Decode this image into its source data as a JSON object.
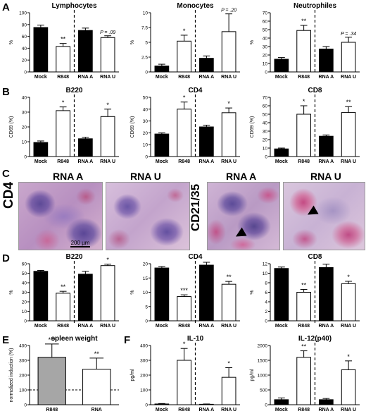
{
  "panels": {
    "A": {
      "letter": "A",
      "charts": [
        {
          "title": "Lymphocytes",
          "ylabel": "%",
          "ylim": [
            0,
            100
          ],
          "yticks": [
            0,
            20,
            40,
            60,
            80,
            100
          ],
          "categories": [
            "Mock",
            "R848",
            "RNA A",
            "RNA U"
          ],
          "values": [
            75,
            43,
            70,
            58
          ],
          "errors": [
            4,
            5,
            4,
            3
          ],
          "fills": [
            "#000",
            "#fff",
            "#000",
            "#fff"
          ],
          "sig": [
            "",
            "**",
            "",
            "P = .09"
          ],
          "divider": true
        },
        {
          "title": "Monocytes",
          "ylabel": "%",
          "ylim": [
            0,
            10
          ],
          "yticks": [
            0,
            2.5,
            5.0,
            7.5,
            10.0
          ],
          "categories": [
            "Mock",
            "R848",
            "RNA A",
            "RNA U"
          ],
          "values": [
            1.0,
            5.2,
            2.3,
            6.8
          ],
          "errors": [
            0.3,
            1.0,
            0.4,
            3.0
          ],
          "fills": [
            "#000",
            "#fff",
            "#000",
            "#fff"
          ],
          "sig": [
            "",
            "*",
            "",
            "P = .20"
          ],
          "divider": true
        },
        {
          "title": "Neutrophiles",
          "ylabel": "%",
          "ylim": [
            0,
            70
          ],
          "yticks": [
            0,
            10,
            20,
            30,
            40,
            50,
            60,
            70
          ],
          "categories": [
            "Mock",
            "R848",
            "RNA A",
            "RNA U"
          ],
          "values": [
            15,
            49,
            27,
            35
          ],
          "errors": [
            2,
            6,
            3,
            6
          ],
          "fills": [
            "#000",
            "#fff",
            "#000",
            "#fff"
          ],
          "sig": [
            "",
            "**",
            "",
            "P = .34"
          ],
          "divider": true
        }
      ]
    },
    "B": {
      "letter": "B",
      "charts": [
        {
          "title": "B220",
          "ylabel": "CD69 (%)",
          "ylim": [
            0,
            40
          ],
          "yticks": [
            0,
            10,
            20,
            30,
            40
          ],
          "categories": [
            "Mock",
            "R848",
            "RNA A",
            "RNA U"
          ],
          "values": [
            9.5,
            31,
            12,
            27
          ],
          "errors": [
            1,
            2.5,
            1,
            5
          ],
          "fills": [
            "#000",
            "#fff",
            "#000",
            "#fff"
          ],
          "sig": [
            "",
            "*",
            "",
            "*"
          ],
          "divider": true
        },
        {
          "title": "CD4",
          "ylabel": "CD69 (%)",
          "ylim": [
            0,
            50
          ],
          "yticks": [
            0,
            10,
            20,
            30,
            40,
            50
          ],
          "categories": [
            "Mock",
            "R848",
            "RNA A",
            "RNA U"
          ],
          "values": [
            19,
            40,
            25,
            37
          ],
          "errors": [
            1,
            6,
            1.5,
            4
          ],
          "fills": [
            "#000",
            "#fff",
            "#000",
            "#fff"
          ],
          "sig": [
            "",
            "*",
            "",
            "*"
          ],
          "divider": true
        },
        {
          "title": "CD8",
          "ylabel": "CD69 (%)",
          "ylim": [
            0,
            70
          ],
          "yticks": [
            0,
            10,
            20,
            30,
            40,
            50,
            60,
            70
          ],
          "categories": [
            "Mock",
            "R848",
            "RNA A",
            "RNA U"
          ],
          "values": [
            9,
            50,
            24,
            52
          ],
          "errors": [
            1,
            10,
            1.5,
            7
          ],
          "fills": [
            "#000",
            "#fff",
            "#000",
            "#fff"
          ],
          "sig": [
            "",
            "*",
            "",
            "**"
          ],
          "divider": true
        }
      ]
    },
    "C": {
      "letter": "C",
      "label_left": "CD4",
      "label_right": "CD21/35",
      "scale_bar": "200 µm",
      "images": [
        {
          "title": "RNA  A"
        },
        {
          "title": "RNA  U"
        },
        {
          "title": "RNA  A"
        },
        {
          "title": "RNA  U"
        }
      ]
    },
    "D": {
      "letter": "D",
      "charts": [
        {
          "title": "B220",
          "ylabel": "%",
          "ylim": [
            0,
            60
          ],
          "yticks": [
            0,
            10,
            20,
            30,
            40,
            50,
            60
          ],
          "categories": [
            "Mock",
            "R848",
            "RNA A",
            "RNA U"
          ],
          "values": [
            52,
            29,
            49,
            58
          ],
          "errors": [
            1,
            2,
            3,
            1.5
          ],
          "fills": [
            "#000",
            "#fff",
            "#000",
            "#fff"
          ],
          "sig": [
            "",
            "**",
            "",
            "*"
          ],
          "divider": true
        },
        {
          "title": "CD4",
          "ylabel": "%",
          "ylim": [
            0,
            20
          ],
          "yticks": [
            0,
            5,
            10,
            15,
            20
          ],
          "categories": [
            "Mock",
            "R848",
            "RNA A",
            "RNA U"
          ],
          "values": [
            18.5,
            8.5,
            19.5,
            12.8
          ],
          "errors": [
            0.5,
            0.6,
            1,
            1
          ],
          "fills": [
            "#000",
            "#fff",
            "#000",
            "#fff"
          ],
          "sig": [
            "",
            "***",
            "",
            "**"
          ],
          "divider": true
        },
        {
          "title": "CD8",
          "ylabel": "%",
          "ylim": [
            0,
            12
          ],
          "yticks": [
            0,
            2,
            4,
            6,
            8,
            10,
            12
          ],
          "categories": [
            "Mock",
            "R848",
            "RNA A",
            "RNA U"
          ],
          "values": [
            11,
            6,
            11.2,
            7.8
          ],
          "errors": [
            0.3,
            0.6,
            0.7,
            0.5
          ],
          "fills": [
            "#000",
            "#fff",
            "#000",
            "#fff"
          ],
          "sig": [
            "",
            "**",
            "",
            "*"
          ],
          "divider": true
        }
      ]
    },
    "E": {
      "letter": "E",
      "charts": [
        {
          "title": "spleen weight",
          "ylabel": "normalized induction (%)",
          "ylim": [
            0,
            400
          ],
          "yticks": [
            0,
            100,
            200,
            300,
            400
          ],
          "categories": [
            "R848",
            "RNA"
          ],
          "values": [
            320,
            240
          ],
          "errors": [
            90,
            75
          ],
          "fills": [
            "#a6a6a6",
            "#fff"
          ],
          "sig": [
            "***",
            "**"
          ],
          "divider": false,
          "reference": 100
        }
      ]
    },
    "F": {
      "letter": "F",
      "charts": [
        {
          "title": "IL-10",
          "ylabel": "pg/ml",
          "ylim": [
            0,
            400
          ],
          "yticks": [
            0,
            100,
            200,
            300,
            400
          ],
          "categories": [
            "Mock",
            "R848",
            "RNA A",
            "RNA U"
          ],
          "values": [
            5,
            300,
            3,
            185
          ],
          "errors": [
            3,
            80,
            2,
            65
          ],
          "fills": [
            "#000",
            "#fff",
            "#000",
            "#fff"
          ],
          "sig": [
            "",
            "*",
            "",
            "*"
          ],
          "divider": true
        },
        {
          "title": "IL-12(p40)",
          "ylabel": "pg/ml",
          "ylim": [
            0,
            2000
          ],
          "yticks": [
            0,
            500,
            1000,
            1500,
            2000
          ],
          "categories": [
            "Mock",
            "R848",
            "RNA A",
            "RNA U"
          ],
          "values": [
            170,
            1600,
            170,
            1180
          ],
          "errors": [
            60,
            220,
            40,
            300
          ],
          "fills": [
            "#000",
            "#fff",
            "#000",
            "#fff"
          ],
          "sig": [
            "",
            "**",
            "",
            "*"
          ],
          "divider": true
        }
      ]
    }
  },
  "chart_data": [
    {
      "type": "bar",
      "title": "Lymphocytes",
      "ylabel": "%",
      "categories": [
        "Mock",
        "R848",
        "RNA A",
        "RNA U"
      ],
      "values": [
        75,
        43,
        70,
        58
      ],
      "ylim": [
        0,
        100
      ]
    },
    {
      "type": "bar",
      "title": "Monocytes",
      "ylabel": "%",
      "categories": [
        "Mock",
        "R848",
        "RNA A",
        "RNA U"
      ],
      "values": [
        1.0,
        5.2,
        2.3,
        6.8
      ],
      "ylim": [
        0,
        10
      ]
    },
    {
      "type": "bar",
      "title": "Neutrophiles",
      "ylabel": "%",
      "categories": [
        "Mock",
        "R848",
        "RNA A",
        "RNA U"
      ],
      "values": [
        15,
        49,
        27,
        35
      ],
      "ylim": [
        0,
        70
      ]
    },
    {
      "type": "bar",
      "title": "B220",
      "ylabel": "CD69 (%)",
      "categories": [
        "Mock",
        "R848",
        "RNA A",
        "RNA U"
      ],
      "values": [
        9.5,
        31,
        12,
        27
      ],
      "ylim": [
        0,
        40
      ]
    },
    {
      "type": "bar",
      "title": "CD4",
      "ylabel": "CD69 (%)",
      "categories": [
        "Mock",
        "R848",
        "RNA A",
        "RNA U"
      ],
      "values": [
        19,
        40,
        25,
        37
      ],
      "ylim": [
        0,
        50
      ]
    },
    {
      "type": "bar",
      "title": "CD8",
      "ylabel": "CD69 (%)",
      "categories": [
        "Mock",
        "R848",
        "RNA A",
        "RNA U"
      ],
      "values": [
        9,
        50,
        24,
        52
      ],
      "ylim": [
        0,
        70
      ]
    },
    {
      "type": "bar",
      "title": "B220",
      "ylabel": "%",
      "categories": [
        "Mock",
        "R848",
        "RNA A",
        "RNA U"
      ],
      "values": [
        52,
        29,
        49,
        58
      ],
      "ylim": [
        0,
        60
      ]
    },
    {
      "type": "bar",
      "title": "CD4",
      "ylabel": "%",
      "categories": [
        "Mock",
        "R848",
        "RNA A",
        "RNA U"
      ],
      "values": [
        18.5,
        8.5,
        19.5,
        12.8
      ],
      "ylim": [
        0,
        20
      ]
    },
    {
      "type": "bar",
      "title": "CD8",
      "ylabel": "%",
      "categories": [
        "Mock",
        "R848",
        "RNA A",
        "RNA U"
      ],
      "values": [
        11,
        6,
        11.2,
        7.8
      ],
      "ylim": [
        0,
        12
      ]
    },
    {
      "type": "bar",
      "title": "spleen weight",
      "ylabel": "normalized induction (%)",
      "categories": [
        "R848",
        "RNA"
      ],
      "values": [
        320,
        240
      ],
      "ylim": [
        0,
        400
      ]
    },
    {
      "type": "bar",
      "title": "IL-10",
      "ylabel": "pg/ml",
      "categories": [
        "Mock",
        "R848",
        "RNA A",
        "RNA U"
      ],
      "values": [
        5,
        300,
        3,
        185
      ],
      "ylim": [
        0,
        400
      ]
    },
    {
      "type": "bar",
      "title": "IL-12(p40)",
      "ylabel": "pg/ml",
      "categories": [
        "Mock",
        "R848",
        "RNA A",
        "RNA U"
      ],
      "values": [
        170,
        1600,
        170,
        1180
      ],
      "ylim": [
        0,
        2000
      ]
    }
  ],
  "colors": {
    "black_bar": "#000000",
    "white_bar": "#ffffff",
    "grey_bar": "#a6a6a6",
    "tissue_purple": "#6a4f9c",
    "tissue_pink": "#c95a88"
  }
}
